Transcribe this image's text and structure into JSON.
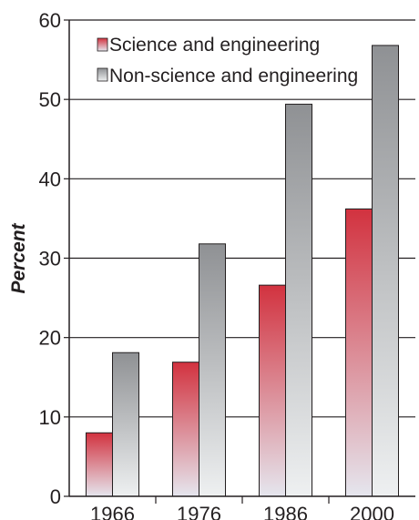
{
  "chart_data": {
    "type": "bar",
    "title": "",
    "xlabel": "",
    "ylabel": "Percent",
    "categories": [
      "1966",
      "1976",
      "1986",
      "2000"
    ],
    "ylim": [
      0,
      60
    ],
    "yticks": [
      0,
      10,
      20,
      30,
      40,
      50,
      60
    ],
    "grid": "horizontal",
    "legend_position": "top-left",
    "series": [
      {
        "name": "Science and engineering",
        "values": [
          8,
          16.9,
          26.6,
          36.2
        ],
        "color": "#d2323f"
      },
      {
        "name": "Non-science and engineering",
        "values": [
          18.1,
          31.8,
          49.4,
          56.8
        ],
        "color": "#8f9194"
      }
    ]
  }
}
